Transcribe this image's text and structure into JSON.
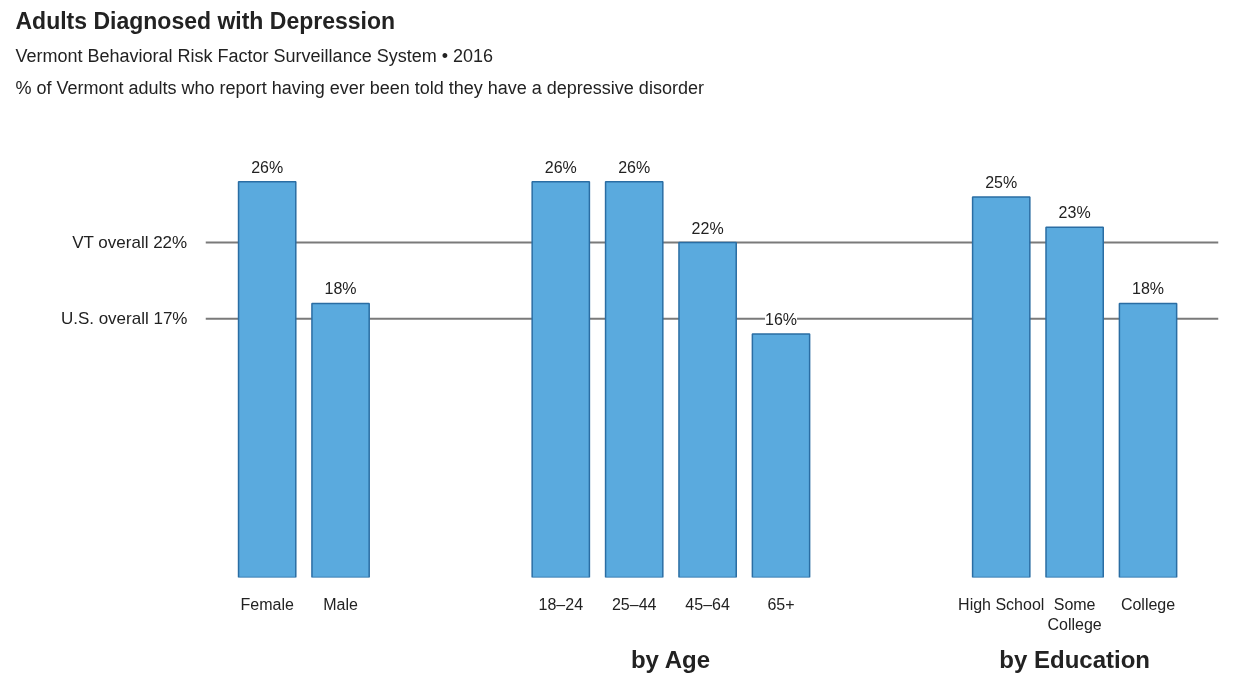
{
  "chart_data": {
    "type": "bar",
    "title": "Adults Diagnosed with Depression",
    "subtitle": "Vermont Behavioral Risk Factor Surveillance System • 2016",
    "ylabel": "% of Vermont adults who report having ever been told they have a depressive disorder",
    "categories": [
      "Female",
      "Male",
      null,
      null,
      "18–24",
      "25–44",
      "45–64",
      "65+",
      null,
      null,
      "High School",
      "Some\nCollege",
      "College"
    ],
    "values": [
      26,
      18,
      null,
      null,
      26,
      26,
      22,
      16,
      null,
      null,
      25,
      23,
      18
    ],
    "value_labels": [
      "26%",
      "18%",
      null,
      null,
      "26%",
      "26%",
      "22%",
      "16%",
      null,
      null,
      "25%",
      "23%",
      "18%"
    ],
    "color": "#5aaade",
    "relative": false,
    "ref_lines": [
      {
        "axis": "y",
        "value": 22,
        "label": "VT overall 22%",
        "color": "#7a7a7a"
      },
      {
        "axis": "y",
        "value": 17,
        "label": "U.S. overall 17%",
        "color": "#7a7a7a"
      }
    ],
    "annotations": [
      "by Age",
      "by Education"
    ],
    "grid": false
  }
}
